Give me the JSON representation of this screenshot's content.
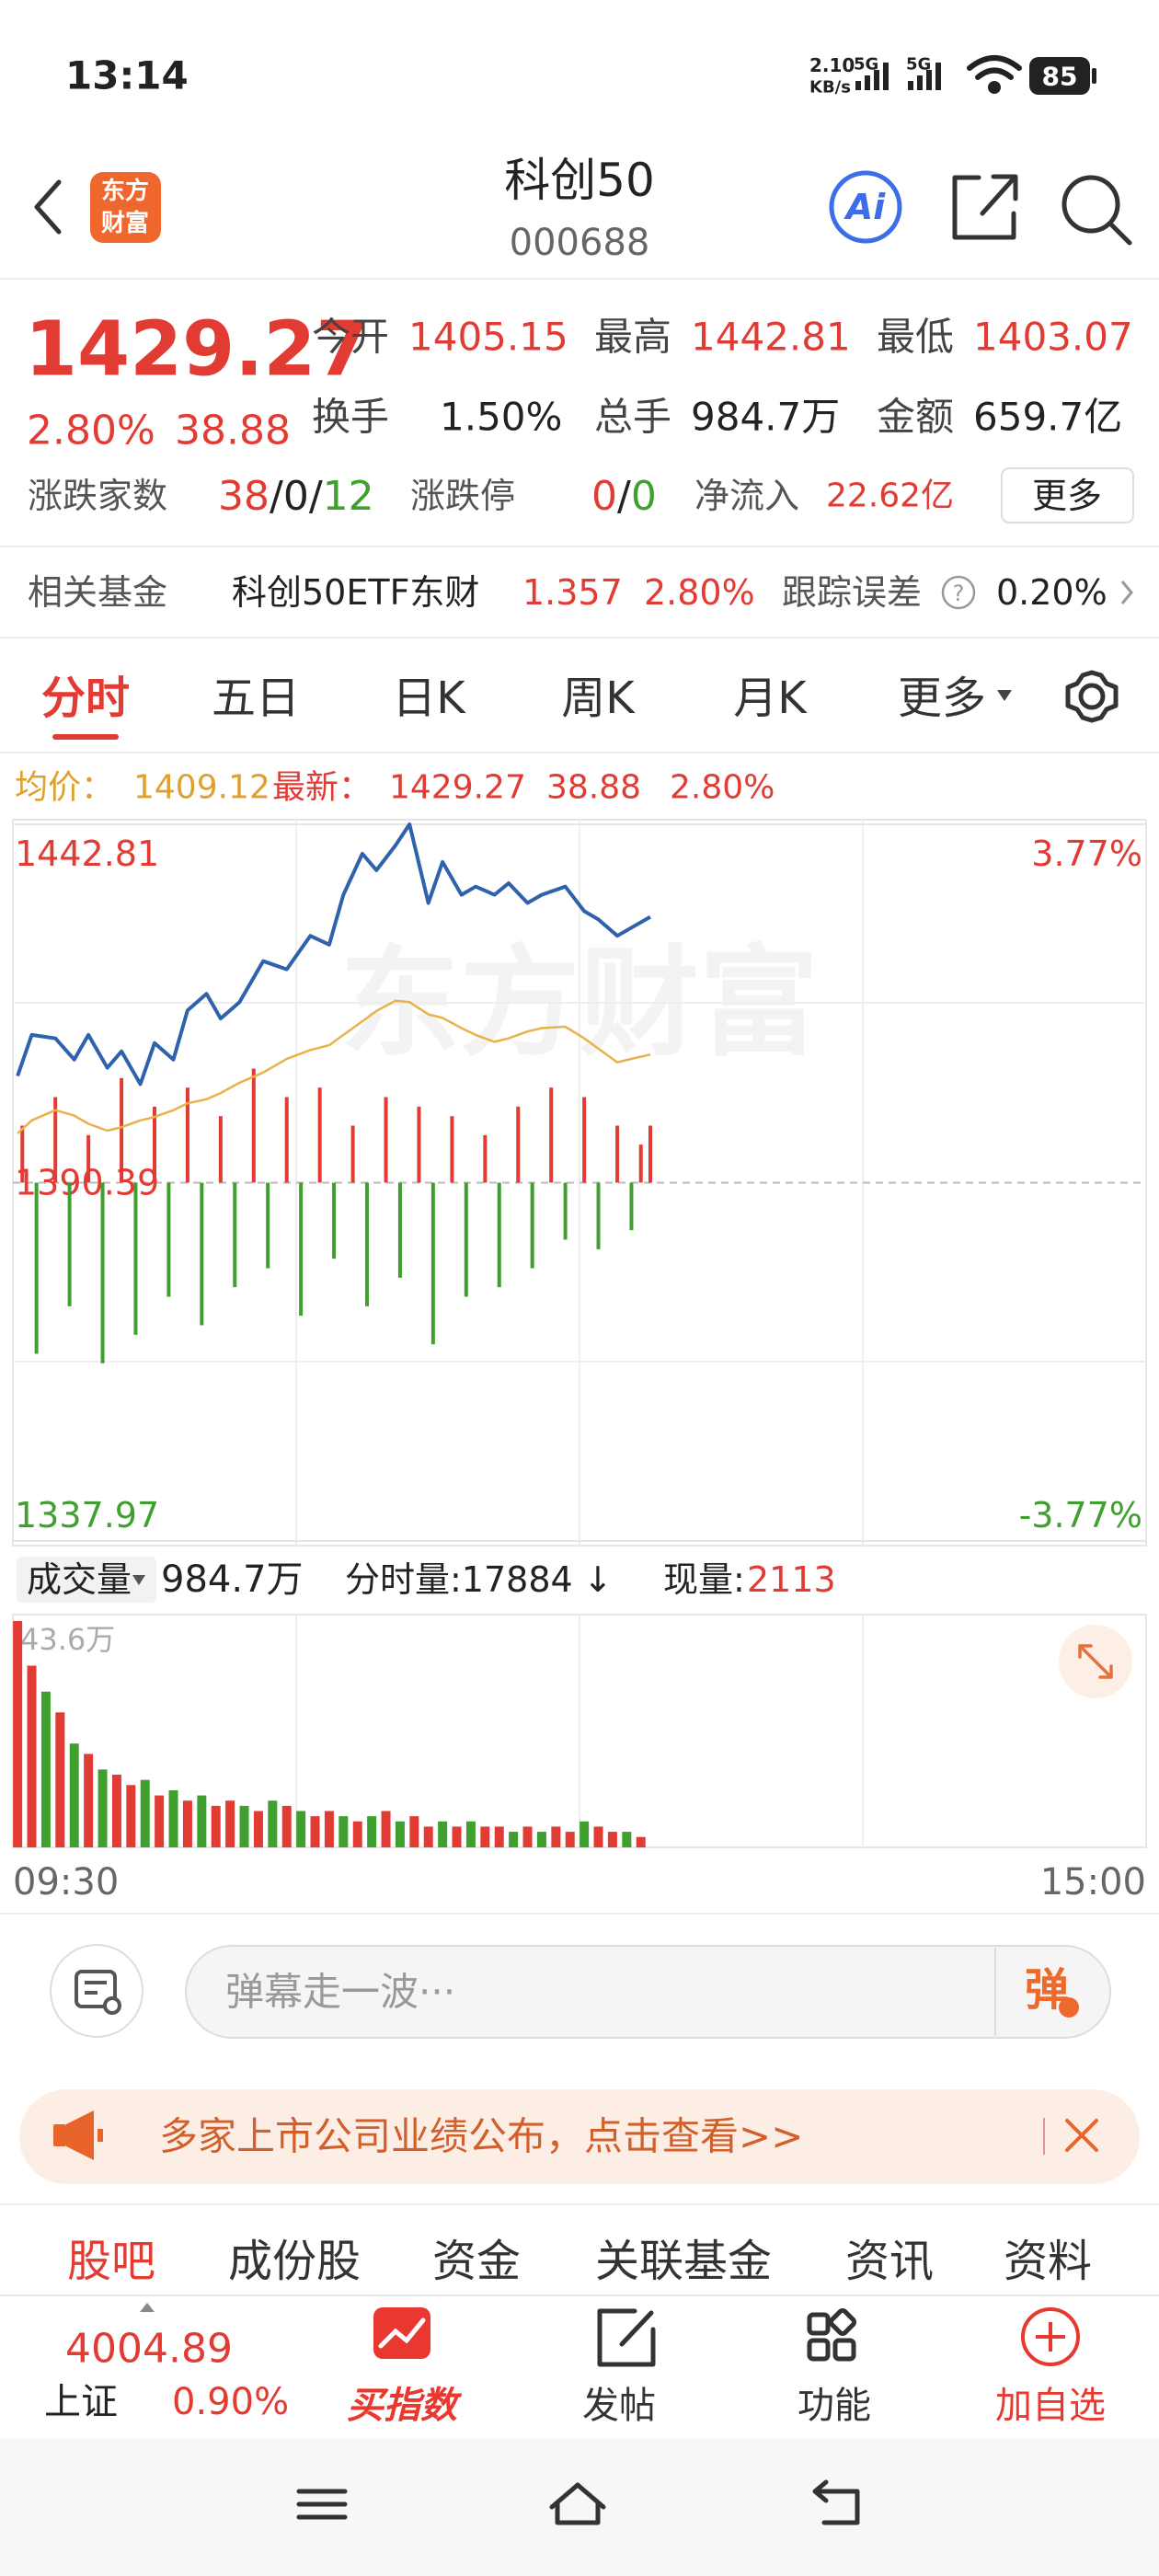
{
  "status_bar": {
    "time": "13:14",
    "net_speed": "2.10",
    "net_speed_unit": "KB/s",
    "network_1": "5G",
    "network_2": "5G",
    "battery": "85"
  },
  "header": {
    "logo_top": "东方",
    "logo_bottom": "财富",
    "title": "科创50",
    "code": "000688",
    "ai_button": "Ai"
  },
  "quote": {
    "price": "1429.27",
    "change_percent": "2.80%",
    "change": "38.88",
    "stats": [
      [
        {
          "label": "今开",
          "value": "1405.15"
        },
        {
          "label": "最高",
          "value": "1442.81"
        },
        {
          "label": "最低",
          "value": "1403.07"
        }
      ],
      [
        {
          "label": "换手",
          "value": "1.50%"
        },
        {
          "label": "总手",
          "value": "984.7万"
        },
        {
          "label": "金额",
          "value": "659.7亿"
        }
      ]
    ],
    "breadth_label": "涨跌家数",
    "breadth_up": "38",
    "breadth_flat": "0",
    "breadth_down": "12",
    "separator": "/",
    "limit_label": "涨跌停",
    "limit_up": "0",
    "limit_down": "0",
    "net_inflow_label": "净流入",
    "net_inflow": "22.62亿",
    "more_button": "更多"
  },
  "related_fund": {
    "label": "相关基金",
    "name": "科创50ETF东财",
    "price": "1.357",
    "change_percent": "2.80%",
    "tracking_error_label": "跟踪误差",
    "help": "?",
    "tracking_error": "0.20%"
  },
  "chart_tabs": {
    "items": [
      "分时",
      "五日",
      "日K",
      "周K",
      "月K",
      "更多"
    ],
    "active": 0
  },
  "intraday_info": {
    "avg_label": "均价：",
    "avg": "1409.12",
    "latest_label": "最新：",
    "latest": "1429.27",
    "change": "38.88",
    "change_percent": "2.80%"
  },
  "chart_data": {
    "type": "line",
    "watermark": "东方财富",
    "x": [
      1,
      4,
      9,
      13,
      16,
      20,
      23,
      27,
      30,
      34,
      37,
      41,
      44,
      48,
      53,
      58,
      63,
      67,
      70,
      74,
      77,
      81,
      84,
      88,
      91,
      95,
      98,
      102,
      105,
      109,
      112,
      117,
      121,
      124,
      128,
      131,
      135
    ],
    "xlim": [
      0,
      240
    ],
    "xticks": [
      {
        "value": 0,
        "label": "09:30"
      },
      {
        "value": 240,
        "label": "15:00"
      }
    ],
    "ylim": [
      1337.97,
      1442.81
    ],
    "yticks": [
      1442.81,
      1390.39,
      1337.97
    ],
    "y2lim": [
      -3.77,
      3.77
    ],
    "y2ticks": [
      {
        "value": 3.77,
        "label": "3.77%"
      },
      {
        "value": -3.77,
        "label": "-3.77%"
      }
    ],
    "up_color": "#e23b33",
    "down_color": "#3f9f2f",
    "series": [
      {
        "color": "#2f62ad",
        "values": [
          1406.0,
          1412.0,
          1411.5,
          1408.4,
          1412.0,
          1407.2,
          1409.6,
          1404.8,
          1410.8,
          1408.4,
          1415.6,
          1418.0,
          1414.4,
          1416.8,
          1422.8,
          1421.6,
          1426.5,
          1425.2,
          1432.5,
          1438.5,
          1436.1,
          1439.7,
          1442.81,
          1431.3,
          1437.3,
          1432.5,
          1433.7,
          1432.5,
          1434.2,
          1431.3,
          1432.5,
          1433.7,
          1430.1,
          1428.9,
          1426.5,
          1427.7,
          1429.27
        ]
      },
      {
        "color": "#e8b24a",
        "values": [
          1397.6,
          1399.5,
          1401.0,
          1400.2,
          1399.0,
          1398.0,
          1398.5,
          1399.5,
          1400.0,
          1401.0,
          1402.0,
          1402.6,
          1403.5,
          1405.0,
          1406.5,
          1408.5,
          1409.8,
          1410.5,
          1412.0,
          1414.0,
          1415.5,
          1417.0,
          1416.8,
          1415.0,
          1414.5,
          1413.0,
          1412.0,
          1411.0,
          1411.5,
          1412.5,
          1413.0,
          1413.2,
          1411.5,
          1410.0,
          1408.0,
          1408.5,
          1409.12
        ]
      }
    ],
    "breadth_bars": {
      "axis": "y2",
      "x": [
        2,
        5,
        9,
        12,
        16,
        19,
        23,
        26,
        30,
        33,
        37,
        40,
        44,
        47,
        51,
        54,
        58,
        61,
        65,
        68,
        72,
        75,
        79,
        82,
        86,
        89,
        93,
        96,
        100,
        103,
        107,
        110,
        114,
        117,
        121,
        124,
        128,
        131,
        133,
        135
      ],
      "values": [
        0.6,
        -1.8,
        0.9,
        -1.3,
        0.5,
        -1.9,
        1.1,
        -1.6,
        0.8,
        -1.2,
        1.0,
        -1.5,
        0.7,
        -1.1,
        1.2,
        -0.9,
        0.9,
        -1.4,
        1.0,
        -0.8,
        0.6,
        -1.3,
        0.9,
        -1.0,
        0.8,
        -1.7,
        0.7,
        -1.2,
        0.5,
        -1.1,
        0.8,
        -0.9,
        1.0,
        -0.6,
        0.9,
        -0.7,
        0.6,
        -0.5,
        0.4,
        0.6
      ]
    },
    "volume": {
      "x": [
        1,
        4,
        7,
        10,
        13,
        16,
        19,
        22,
        25,
        28,
        31,
        34,
        37,
        40,
        43,
        46,
        49,
        52,
        55,
        58,
        61,
        64,
        67,
        70,
        73,
        76,
        79,
        82,
        85,
        88,
        91,
        94,
        97,
        100,
        103,
        106,
        109,
        112,
        115,
        118,
        121,
        124,
        127,
        130,
        133
      ],
      "values": [
        43.6,
        35,
        30,
        26,
        20,
        18,
        15,
        14,
        12,
        13,
        10,
        11,
        9,
        10,
        8,
        9,
        8,
        7,
        9,
        8,
        7,
        6,
        7,
        6,
        5,
        6,
        7,
        5,
        6,
        4,
        5,
        4,
        5,
        4,
        4,
        3,
        4,
        3,
        4,
        3,
        5,
        4,
        3,
        3,
        2
      ],
      "up": [
        true,
        true,
        false,
        true,
        false,
        true,
        false,
        true,
        true,
        false,
        true,
        false,
        true,
        false,
        true,
        true,
        false,
        true,
        false,
        true,
        false,
        true,
        true,
        false,
        true,
        false,
        true,
        false,
        true,
        true,
        false,
        true,
        false,
        true,
        true,
        false,
        true,
        false,
        true,
        true,
        false,
        true,
        true,
        false,
        true
      ],
      "ylim": [
        0,
        43.6
      ],
      "yticks": [
        {
          "value": 43.6,
          "label": "43.6万"
        }
      ]
    }
  },
  "volume_header": {
    "label": "成交量",
    "total": "984.7万",
    "minute_volume": "分时量:17884",
    "arrow": "↓",
    "current_label": "现量:",
    "current": "2113"
  },
  "comment_bar": {
    "placeholder": "弹幕走一波···",
    "danmaku_button": "弹"
  },
  "banner": {
    "text": "多家上市公司业绩公布，点击查看>>"
  },
  "sub_tabs": {
    "items": [
      "股吧",
      "成份股",
      "资金",
      "关联基金",
      "资讯",
      "资料"
    ],
    "active": 0
  },
  "bottom_bar": {
    "index_value": "4004.89",
    "index_name": "上证",
    "index_change": "0.90%",
    "actions": [
      "买指数",
      "发帖",
      "功能",
      "加自选"
    ]
  }
}
